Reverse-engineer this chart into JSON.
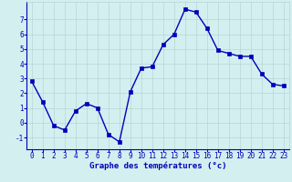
{
  "x": [
    0,
    1,
    2,
    3,
    4,
    5,
    6,
    7,
    8,
    9,
    10,
    11,
    12,
    13,
    14,
    15,
    16,
    17,
    18,
    19,
    20,
    21,
    22,
    23
  ],
  "y": [
    2.8,
    1.4,
    -0.2,
    -0.5,
    0.8,
    1.3,
    1.0,
    -0.8,
    -1.3,
    2.1,
    3.7,
    3.8,
    5.3,
    6.0,
    7.7,
    7.5,
    6.4,
    4.9,
    4.7,
    4.5,
    4.5,
    3.3,
    2.6,
    2.5
  ],
  "xlabel": "Graphe des températures (°c)",
  "line_color": "#0000bb",
  "marker_color": "#0000bb",
  "bg_color": "#d4efef",
  "grid_color": "#b8d4d4",
  "axis_label_color": "#0000bb",
  "ylim": [
    -1.8,
    8.2
  ],
  "xlim": [
    -0.5,
    23.5
  ],
  "yticks": [
    -1,
    0,
    1,
    2,
    3,
    4,
    5,
    6,
    7
  ],
  "xticks": [
    0,
    1,
    2,
    3,
    4,
    5,
    6,
    7,
    8,
    9,
    10,
    11,
    12,
    13,
    14,
    15,
    16,
    17,
    18,
    19,
    20,
    21,
    22,
    23
  ],
  "xlabel_fontsize": 6.5,
  "tick_fontsize": 5.5,
  "line_width": 1.0,
  "marker_size": 2.5
}
